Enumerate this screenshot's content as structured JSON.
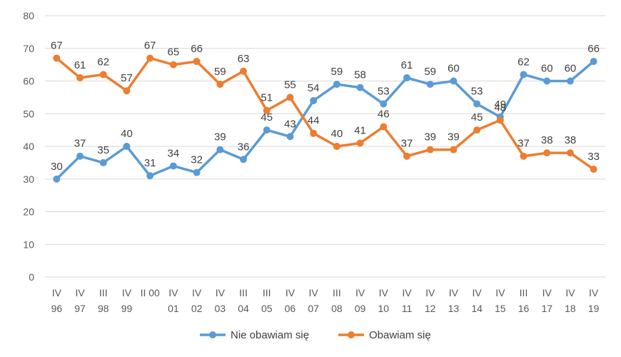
{
  "chart_data": {
    "type": "line",
    "title": "",
    "xlabel": "",
    "ylabel": "",
    "ylim": [
      0,
      80
    ],
    "y_ticks": [
      0,
      10,
      20,
      30,
      40,
      50,
      60,
      70,
      80
    ],
    "grid": "horizontal",
    "legend_position": "bottom",
    "categories": [
      [
        "IV",
        "96"
      ],
      [
        "IV",
        "97"
      ],
      [
        "III",
        "98"
      ],
      [
        "IV",
        "99"
      ],
      [
        "II 00",
        ""
      ],
      [
        "IV",
        "01"
      ],
      [
        "IV",
        "02"
      ],
      [
        "IV",
        "03"
      ],
      [
        "III",
        "04"
      ],
      [
        "III",
        "05"
      ],
      [
        "IV",
        "06"
      ],
      [
        "IV",
        "07"
      ],
      [
        "III",
        "08"
      ],
      [
        "IV",
        "09"
      ],
      [
        "IV",
        "10"
      ],
      [
        "IV",
        "11"
      ],
      [
        "IV",
        "12"
      ],
      [
        "IV",
        "13"
      ],
      [
        "IV",
        "14"
      ],
      [
        "IV",
        "15"
      ],
      [
        "III",
        "16"
      ],
      [
        "IV",
        "17"
      ],
      [
        "IV",
        "18"
      ],
      [
        "IV",
        "19"
      ]
    ],
    "series": [
      {
        "name": "Nie obawiam się",
        "color": "#5b9bd5",
        "values": [
          30,
          37,
          35,
          40,
          31,
          34,
          32,
          39,
          36,
          45,
          43,
          54,
          59,
          58,
          53,
          61,
          59,
          60,
          53,
          49,
          62,
          60,
          60,
          66
        ]
      },
      {
        "name": "Obawiam się",
        "color": "#ed7d31",
        "values": [
          67,
          61,
          62,
          57,
          67,
          65,
          66,
          59,
          63,
          51,
          55,
          44,
          40,
          41,
          46,
          37,
          39,
          39,
          45,
          48,
          37,
          38,
          38,
          33
        ]
      }
    ]
  }
}
